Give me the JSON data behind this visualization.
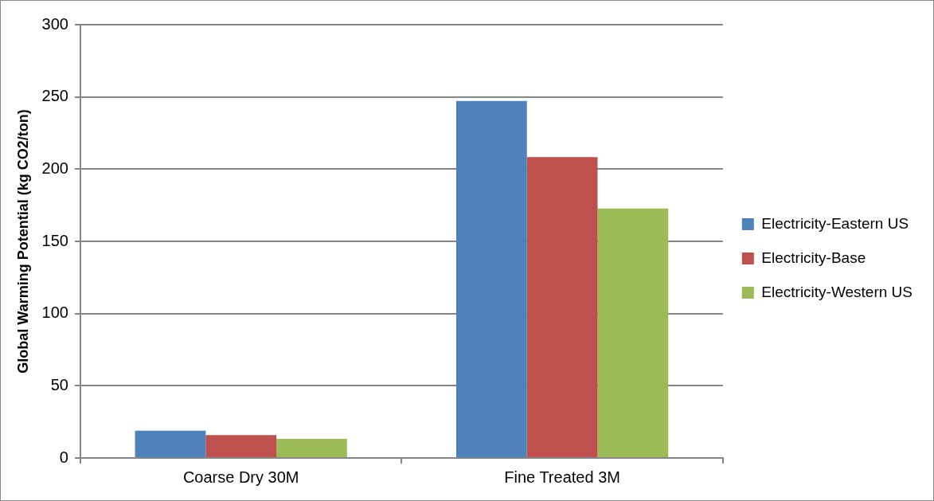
{
  "chart_data": {
    "type": "bar",
    "ylabel": "Global Warming Potential (kg CO2/ton)",
    "categories": [
      "Coarse Dry 30M",
      "Fine Treated 3M"
    ],
    "series": [
      {
        "name": "Electricity-Eastern US",
        "color": "#4f81bd",
        "values": [
          18.9,
          247.2
        ]
      },
      {
        "name": "Electricity-Base",
        "color": "#c0504d",
        "values": [
          15.8,
          208.3
        ]
      },
      {
        "name": "Electricity-Western US",
        "color": "#9bbb59",
        "values": [
          13.2,
          172.7
        ]
      }
    ],
    "ylim": [
      0,
      300
    ],
    "yticks": [
      0,
      50,
      100,
      150,
      200,
      250,
      300
    ],
    "grid": "y",
    "legend": "right"
  }
}
